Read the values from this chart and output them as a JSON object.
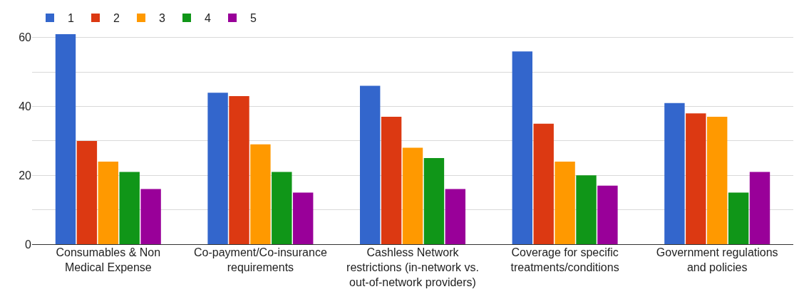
{
  "chart_data": {
    "type": "bar",
    "categories": [
      "Consumables & Non Medical Expense",
      "Co-payment/Co-insurance requirements",
      "Cashless Network restrictions (in-network vs. out-of-network providers)",
      "Coverage for specific treatments/conditions",
      "Government regulations and policies"
    ],
    "series": [
      {
        "name": "1",
        "color": "#3366cc",
        "values": [
          61,
          44,
          46,
          56,
          41
        ]
      },
      {
        "name": "2",
        "color": "#dc3912",
        "values": [
          30,
          43,
          37,
          35,
          38
        ]
      },
      {
        "name": "3",
        "color": "#ff9900",
        "values": [
          24,
          29,
          28,
          24,
          37
        ]
      },
      {
        "name": "4",
        "color": "#109618",
        "values": [
          21,
          21,
          25,
          20,
          15
        ]
      },
      {
        "name": "5",
        "color": "#990099",
        "values": [
          16,
          15,
          16,
          17,
          21
        ]
      }
    ],
    "ylim": [
      0,
      61
    ],
    "yticks": [
      0,
      {
        "value": 10,
        "label": null
      },
      20,
      {
        "value": 30,
        "label": null
      },
      40,
      {
        "value": 50,
        "label": null
      },
      60
    ],
    "grid": "y",
    "legend": "top left"
  }
}
